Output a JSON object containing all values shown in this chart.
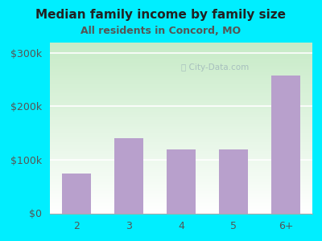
{
  "categories": [
    "2",
    "3",
    "4",
    "5",
    "6+"
  ],
  "values": [
    75000,
    140000,
    120000,
    120000,
    258000
  ],
  "bar_color": "#b8a0cc",
  "title": "Median family income by family size",
  "subtitle": "All residents in Concord, MO",
  "title_fontsize": 11,
  "subtitle_fontsize": 9,
  "ylabel_ticks": [
    "$0",
    "$100k",
    "$200k",
    "$300k"
  ],
  "ytick_values": [
    0,
    100000,
    200000,
    300000
  ],
  "ylim": [
    0,
    320000
  ],
  "bg_outer": "#00eeff",
  "watermark": "City-Data.com",
  "tick_fontsize": 9,
  "gradient_top": "#c8e6c0",
  "gradient_bottom": "#f0faf0"
}
